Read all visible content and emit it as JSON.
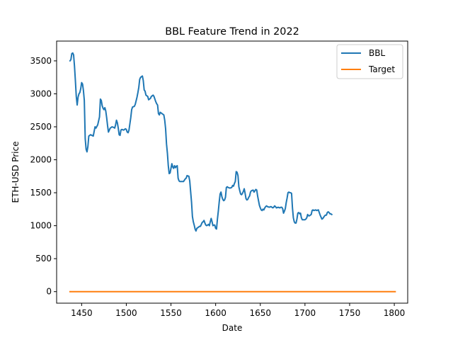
{
  "chart_data": {
    "type": "line",
    "title": "BBL Feature Trend in 2022",
    "xlabel": "Date",
    "ylabel": "ETH-USD Price",
    "xlim": [
      1422,
      1815
    ],
    "ylim": [
      -175,
      3800
    ],
    "x_ticks": [
      1450,
      1500,
      1550,
      1600,
      1650,
      1700,
      1750,
      1800
    ],
    "y_ticks": [
      0,
      500,
      1000,
      1500,
      2000,
      2500,
      3000,
      3500
    ],
    "grid": false,
    "legend_position": "upper right",
    "series": [
      {
        "name": "BBL",
        "color": "#1f77b4",
        "points": [
          [
            1437,
            3500
          ],
          [
            1438,
            3520
          ],
          [
            1439,
            3610
          ],
          [
            1440,
            3620
          ],
          [
            1441,
            3590
          ],
          [
            1442,
            3420
          ],
          [
            1443,
            3200
          ],
          [
            1444,
            2960
          ],
          [
            1445,
            2830
          ],
          [
            1446,
            2950
          ],
          [
            1447,
            3000
          ],
          [
            1448,
            3020
          ],
          [
            1449,
            3080
          ],
          [
            1450,
            3170
          ],
          [
            1451,
            3150
          ],
          [
            1452,
            3050
          ],
          [
            1453,
            2900
          ],
          [
            1454,
            2320
          ],
          [
            1455,
            2160
          ],
          [
            1456,
            2120
          ],
          [
            1457,
            2200
          ],
          [
            1458,
            2360
          ],
          [
            1460,
            2380
          ],
          [
            1463,
            2360
          ],
          [
            1465,
            2500
          ],
          [
            1466,
            2480
          ],
          [
            1468,
            2530
          ],
          [
            1470,
            2650
          ],
          [
            1471,
            2920
          ],
          [
            1472,
            2900
          ],
          [
            1473,
            2820
          ],
          [
            1474,
            2780
          ],
          [
            1475,
            2760
          ],
          [
            1476,
            2790
          ],
          [
            1477,
            2740
          ],
          [
            1478,
            2640
          ],
          [
            1479,
            2520
          ],
          [
            1480,
            2420
          ],
          [
            1482,
            2480
          ],
          [
            1484,
            2500
          ],
          [
            1486,
            2490
          ],
          [
            1487,
            2480
          ],
          [
            1488,
            2530
          ],
          [
            1489,
            2600
          ],
          [
            1490,
            2560
          ],
          [
            1491,
            2480
          ],
          [
            1492,
            2380
          ],
          [
            1493,
            2370
          ],
          [
            1494,
            2450
          ],
          [
            1495,
            2460
          ],
          [
            1497,
            2450
          ],
          [
            1499,
            2470
          ],
          [
            1500,
            2460
          ],
          [
            1501,
            2420
          ],
          [
            1502,
            2410
          ],
          [
            1503,
            2450
          ],
          [
            1505,
            2640
          ],
          [
            1506,
            2760
          ],
          [
            1507,
            2800
          ],
          [
            1509,
            2810
          ],
          [
            1510,
            2840
          ],
          [
            1512,
            2950
          ],
          [
            1513,
            3020
          ],
          [
            1514,
            3100
          ],
          [
            1515,
            3220
          ],
          [
            1516,
            3250
          ],
          [
            1518,
            3270
          ],
          [
            1519,
            3200
          ],
          [
            1520,
            3060
          ],
          [
            1521,
            3040
          ],
          [
            1522,
            2980
          ],
          [
            1524,
            2960
          ],
          [
            1525,
            2910
          ],
          [
            1527,
            2930
          ],
          [
            1528,
            2960
          ],
          [
            1530,
            2980
          ],
          [
            1531,
            2960
          ],
          [
            1532,
            2920
          ],
          [
            1533,
            2880
          ],
          [
            1534,
            2850
          ],
          [
            1535,
            2830
          ],
          [
            1536,
            2700
          ],
          [
            1537,
            2680
          ],
          [
            1538,
            2720
          ],
          [
            1540,
            2700
          ],
          [
            1542,
            2680
          ],
          [
            1543,
            2600
          ],
          [
            1544,
            2470
          ],
          [
            1545,
            2240
          ],
          [
            1546,
            2100
          ],
          [
            1547,
            1910
          ],
          [
            1548,
            1790
          ],
          [
            1549,
            1800
          ],
          [
            1550,
            1870
          ],
          [
            1551,
            1940
          ],
          [
            1552,
            1890
          ],
          [
            1553,
            1870
          ],
          [
            1554,
            1910
          ],
          [
            1555,
            1880
          ],
          [
            1556,
            1900
          ],
          [
            1557,
            1910
          ],
          [
            1558,
            1720
          ],
          [
            1559,
            1680
          ],
          [
            1560,
            1670
          ],
          [
            1562,
            1670
          ],
          [
            1564,
            1670
          ],
          [
            1565,
            1690
          ],
          [
            1566,
            1710
          ],
          [
            1567,
            1720
          ],
          [
            1568,
            1760
          ],
          [
            1570,
            1750
          ],
          [
            1571,
            1680
          ],
          [
            1572,
            1520
          ],
          [
            1573,
            1360
          ],
          [
            1574,
            1140
          ],
          [
            1575,
            1060
          ],
          [
            1576,
            1010
          ],
          [
            1577,
            950
          ],
          [
            1578,
            920
          ],
          [
            1579,
            960
          ],
          [
            1580,
            970
          ],
          [
            1582,
            990
          ],
          [
            1583,
            990
          ],
          [
            1584,
            1020
          ],
          [
            1585,
            1050
          ],
          [
            1586,
            1060
          ],
          [
            1587,
            1080
          ],
          [
            1588,
            1040
          ],
          [
            1589,
            1010
          ],
          [
            1590,
            1000
          ],
          [
            1592,
            1020
          ],
          [
            1593,
            1000
          ],
          [
            1594,
            1060
          ],
          [
            1595,
            1110
          ],
          [
            1596,
            1060
          ],
          [
            1597,
            1000
          ],
          [
            1598,
            1010
          ],
          [
            1599,
            1010
          ],
          [
            1600,
            960
          ],
          [
            1601,
            950
          ],
          [
            1602,
            1100
          ],
          [
            1603,
            1220
          ],
          [
            1604,
            1360
          ],
          [
            1605,
            1480
          ],
          [
            1606,
            1510
          ],
          [
            1607,
            1440
          ],
          [
            1608,
            1400
          ],
          [
            1609,
            1380
          ],
          [
            1610,
            1390
          ],
          [
            1611,
            1430
          ],
          [
            1612,
            1580
          ],
          [
            1613,
            1590
          ],
          [
            1614,
            1580
          ],
          [
            1616,
            1570
          ],
          [
            1618,
            1580
          ],
          [
            1619,
            1610
          ],
          [
            1620,
            1600
          ],
          [
            1621,
            1640
          ],
          [
            1622,
            1670
          ],
          [
            1623,
            1820
          ],
          [
            1624,
            1810
          ],
          [
            1625,
            1760
          ],
          [
            1626,
            1590
          ],
          [
            1627,
            1530
          ],
          [
            1628,
            1480
          ],
          [
            1629,
            1470
          ],
          [
            1630,
            1490
          ],
          [
            1631,
            1520
          ],
          [
            1632,
            1560
          ],
          [
            1633,
            1490
          ],
          [
            1634,
            1410
          ],
          [
            1635,
            1390
          ],
          [
            1636,
            1400
          ],
          [
            1637,
            1430
          ],
          [
            1638,
            1450
          ],
          [
            1639,
            1510
          ],
          [
            1640,
            1530
          ],
          [
            1642,
            1540
          ],
          [
            1643,
            1510
          ],
          [
            1644,
            1530
          ],
          [
            1645,
            1550
          ],
          [
            1646,
            1540
          ],
          [
            1647,
            1450
          ],
          [
            1648,
            1380
          ],
          [
            1649,
            1310
          ],
          [
            1650,
            1270
          ],
          [
            1651,
            1240
          ],
          [
            1652,
            1230
          ],
          [
            1653,
            1250
          ],
          [
            1654,
            1240
          ],
          [
            1655,
            1270
          ],
          [
            1656,
            1290
          ],
          [
            1657,
            1300
          ],
          [
            1658,
            1290
          ],
          [
            1660,
            1280
          ],
          [
            1662,
            1290
          ],
          [
            1663,
            1280
          ],
          [
            1664,
            1270
          ],
          [
            1665,
            1280
          ],
          [
            1666,
            1300
          ],
          [
            1667,
            1290
          ],
          [
            1668,
            1270
          ],
          [
            1670,
            1280
          ],
          [
            1672,
            1270
          ],
          [
            1673,
            1280
          ],
          [
            1674,
            1280
          ],
          [
            1675,
            1260
          ],
          [
            1676,
            1190
          ],
          [
            1677,
            1220
          ],
          [
            1678,
            1260
          ],
          [
            1679,
            1350
          ],
          [
            1680,
            1420
          ],
          [
            1681,
            1500
          ],
          [
            1682,
            1510
          ],
          [
            1683,
            1500
          ],
          [
            1684,
            1500
          ],
          [
            1685,
            1490
          ],
          [
            1686,
            1270
          ],
          [
            1687,
            1120
          ],
          [
            1688,
            1060
          ],
          [
            1689,
            1040
          ],
          [
            1690,
            1040
          ],
          [
            1691,
            1100
          ],
          [
            1692,
            1190
          ],
          [
            1693,
            1200
          ],
          [
            1694,
            1180
          ],
          [
            1695,
            1190
          ],
          [
            1696,
            1120
          ],
          [
            1697,
            1090
          ],
          [
            1698,
            1090
          ],
          [
            1700,
            1090
          ],
          [
            1701,
            1100
          ],
          [
            1702,
            1120
          ],
          [
            1703,
            1170
          ],
          [
            1704,
            1150
          ],
          [
            1705,
            1150
          ],
          [
            1706,
            1160
          ],
          [
            1707,
            1170
          ],
          [
            1708,
            1230
          ],
          [
            1709,
            1240
          ],
          [
            1710,
            1230
          ],
          [
            1712,
            1240
          ],
          [
            1713,
            1230
          ],
          [
            1715,
            1240
          ],
          [
            1716,
            1200
          ],
          [
            1717,
            1160
          ],
          [
            1718,
            1130
          ],
          [
            1719,
            1100
          ],
          [
            1720,
            1110
          ],
          [
            1721,
            1130
          ],
          [
            1722,
            1150
          ],
          [
            1723,
            1160
          ],
          [
            1724,
            1160
          ],
          [
            1725,
            1200
          ],
          [
            1726,
            1210
          ],
          [
            1727,
            1200
          ],
          [
            1728,
            1180
          ],
          [
            1729,
            1180
          ],
          [
            1730,
            1170
          ]
        ]
      },
      {
        "name": "Target",
        "color": "#ff7f0e",
        "points": [
          [
            1437,
            0
          ],
          [
            1801,
            0
          ]
        ]
      }
    ]
  }
}
